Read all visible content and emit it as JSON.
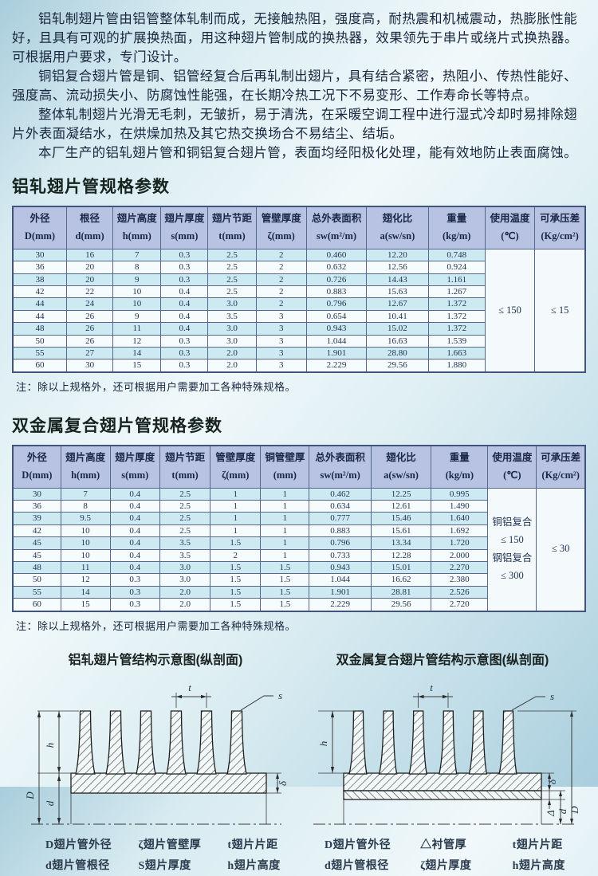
{
  "intro": {
    "p1": "铝轧制翅片管由铝管整体轧制而成，无接触热阻，强度高，耐热震和机械震动，热膨胀性能好，且具有可观的扩展换热面，用这种翅片管制成的换热器，效果领先于串片或绕片式换热器。可根据用户要求，专门设计。",
    "p2": "铜铝复合翅片管是铜、铝管经复合后再轧制出翅片，具有结合紧密，热阻小、传热性能好、强度高、流动损失小、防腐蚀性能强，在长期冷热工况下不易变形、工作寿命长等特点。",
    "p3": "整体轧制翅片光滑无毛刺，无皱折，易于清洗，在采暖空调工程中进行湿式冷却时易排除翅片外表面凝结水，在烘燥加热及其它热交换场合不易结尘、结垢。",
    "p4": "本厂生产的铝轧翅片管和铜铝复合翅片管，表面均经阳极化处理，能有效地防止表面腐蚀。"
  },
  "spec1": {
    "title": "铝轧翅片管规格参数",
    "note": "注：除以上规格外，还可根据用户需要加工各种特殊规格。",
    "headers": [
      {
        "l1": "外径",
        "l2": "D(mm)"
      },
      {
        "l1": "根径",
        "l2": "d(mm)"
      },
      {
        "l1": "翅片高度",
        "l2": "h(mm)"
      },
      {
        "l1": "翅片厚度",
        "l2": "s(mm)"
      },
      {
        "l1": "翅片节距",
        "l2": "t(mm)"
      },
      {
        "l1": "管壁厚度",
        "l2": "ζ(mm)"
      },
      {
        "l1": "总外表面积",
        "l2": "sw(m²/m)"
      },
      {
        "l1": "翅化比",
        "l2": "a(sw/sn)"
      },
      {
        "l1": "重量",
        "l2": "(kg/m)"
      },
      {
        "l1": "使用温度",
        "l2": "(℃)"
      },
      {
        "l1": "可承压差",
        "l2": "(Kg/cm²)"
      }
    ],
    "rows": [
      [
        "30",
        "16",
        "7",
        "0.3",
        "2.5",
        "2",
        "0.460",
        "12.20",
        "0.748"
      ],
      [
        "36",
        "20",
        "8",
        "0.3",
        "2.5",
        "2",
        "0.632",
        "12.56",
        "0.924"
      ],
      [
        "38",
        "20",
        "9",
        "0.3",
        "2.5",
        "2",
        "0.726",
        "14.43",
        "1.161"
      ],
      [
        "42",
        "22",
        "10",
        "0.4",
        "2.5",
        "2",
        "0.883",
        "15.63",
        "1.267"
      ],
      [
        "44",
        "24",
        "10",
        "0.4",
        "3.0",
        "2",
        "0.796",
        "12.67",
        "1.372"
      ],
      [
        "44",
        "26",
        "9",
        "0.4",
        "3.5",
        "3",
        "0.654",
        "10.41",
        "1.372"
      ],
      [
        "48",
        "26",
        "11",
        "0.4",
        "3.0",
        "3",
        "0.943",
        "15.02",
        "1.372"
      ],
      [
        "50",
        "26",
        "12",
        "0.3",
        "3.0",
        "3",
        "1.044",
        "16.63",
        "1.539"
      ],
      [
        "55",
        "27",
        "14",
        "0.3",
        "2.0",
        "3",
        "1.901",
        "28.80",
        "1.663"
      ],
      [
        "60",
        "30",
        "15",
        "0.3",
        "2.0",
        "3",
        "2.229",
        "29.56",
        "1.880"
      ]
    ],
    "temp": [
      "≤ 150"
    ],
    "pressure": "≤ 15"
  },
  "spec2": {
    "title": "双金属复合翅片管规格参数",
    "note": "注：除以上规格外，还可根据用户需要加工各种特殊规格。",
    "headers": [
      {
        "l1": "外径",
        "l2": "D(mm)"
      },
      {
        "l1": "翅片高度",
        "l2": "h(mm)"
      },
      {
        "l1": "翅片厚度",
        "l2": "s(mm)"
      },
      {
        "l1": "翅片节距",
        "l2": "t(mm)"
      },
      {
        "l1": "管壁厚度",
        "l2": "ζ(mm)"
      },
      {
        "l1": "铜管壁厚",
        "l2": "(mm)"
      },
      {
        "l1": "总外表面积",
        "l2": "sw(m²/m)"
      },
      {
        "l1": "翅化比",
        "l2": "a(sw/sn)"
      },
      {
        "l1": "重量",
        "l2": "(kg/m)"
      },
      {
        "l1": "使用温度",
        "l2": "(℃)"
      },
      {
        "l1": "可承压差",
        "l2": "(Kg/cm²)"
      }
    ],
    "rows": [
      [
        "30",
        "7",
        "0.4",
        "2.5",
        "1",
        "1",
        "0.462",
        "12.25",
        "0.995"
      ],
      [
        "36",
        "8",
        "0.4",
        "2.5",
        "1",
        "1",
        "0.634",
        "12.61",
        "1.490"
      ],
      [
        "39",
        "9.5",
        "0.4",
        "2.5",
        "1",
        "1",
        "0.777",
        "15.46",
        "1.640"
      ],
      [
        "42",
        "10",
        "0.4",
        "2.5",
        "1",
        "1",
        "0.883",
        "15.61",
        "1.692"
      ],
      [
        "45",
        "10",
        "0.4",
        "3.5",
        "1.5",
        "1",
        "0.796",
        "13.34",
        "1.720"
      ],
      [
        "45",
        "10",
        "0.4",
        "3.5",
        "2",
        "1",
        "0.733",
        "12.28",
        "2.000"
      ],
      [
        "48",
        "11",
        "0.4",
        "3.0",
        "1.5",
        "1.5",
        "0.943",
        "15.01",
        "2.270"
      ],
      [
        "50",
        "12",
        "0.3",
        "3.0",
        "1.5",
        "1.5",
        "1.044",
        "16.62",
        "2.380"
      ],
      [
        "55",
        "14",
        "0.3",
        "2.0",
        "1.5",
        "1.5",
        "1.901",
        "28.81",
        "2.526"
      ],
      [
        "60",
        "15",
        "0.3",
        "2.0",
        "1.5",
        "1.5",
        "2.229",
        "29.56",
        "2.720"
      ]
    ],
    "temp": [
      "铜铝复合",
      "≤ 150",
      "钢铝复合",
      "≤ 300"
    ],
    "pressure": "≤ 30"
  },
  "diagrams": {
    "left": {
      "title": "铝轧翅片管结构示意图(纵剖面)",
      "legend": [
        "D翅片管外径",
        "ζ翅片管壁厚",
        "t翅片片距",
        "d翅片管根径",
        "S翅片厚度",
        "h翅片高度"
      ],
      "dims": {
        "t": "t",
        "s": "s",
        "h": "h",
        "delta": "δ",
        "D": "D",
        "d": "d"
      }
    },
    "right": {
      "title": "双金属复合翅片管结构示意图(纵剖面)",
      "legend": [
        "D翅片管外径",
        "△衬管厚",
        "t翅片片距",
        "d翅片管根径",
        "ζ翅片厚度",
        "h翅片高度"
      ],
      "dims": {
        "t": "t",
        "s": "s",
        "h": "h",
        "delta": "δ",
        "Delta": "Δ",
        "D": "D",
        "d": "d"
      }
    }
  },
  "colors": {
    "table_header_bg": "#b8c3e4",
    "row_stripe": "#cdeaf3",
    "table_border": "#57688f",
    "text": "#18263f",
    "page_bg": "#cfe5ee"
  }
}
